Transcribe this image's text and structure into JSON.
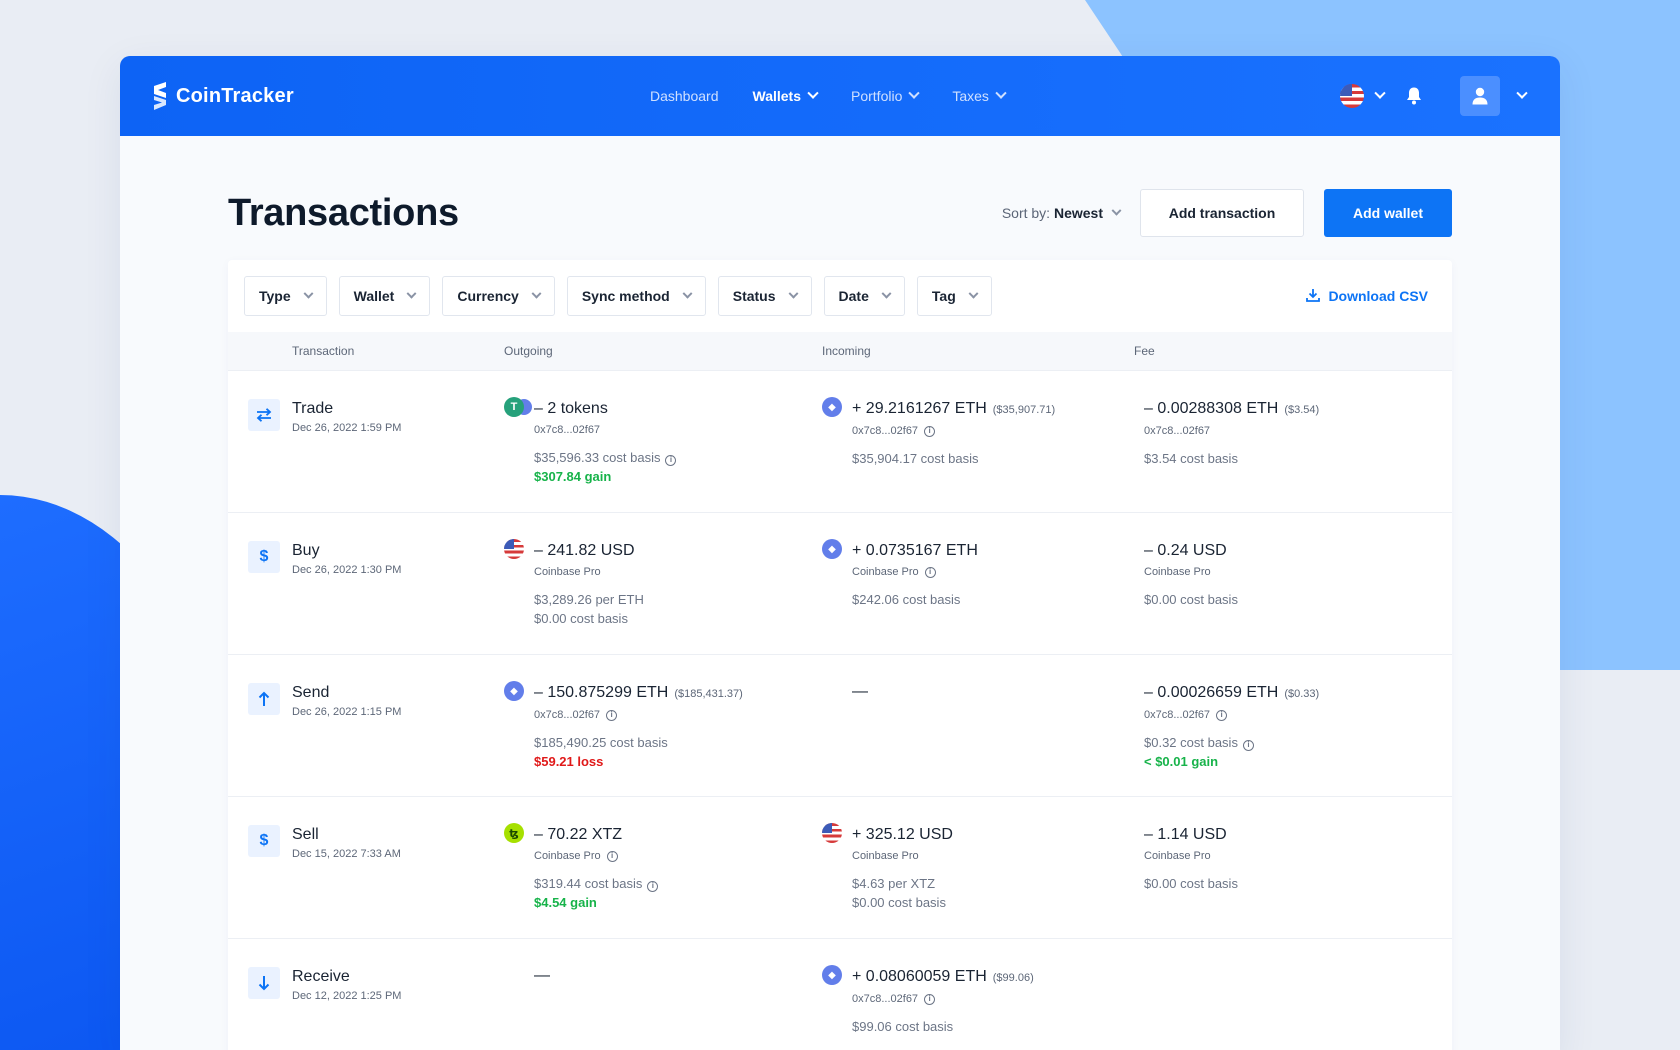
{
  "app": {
    "name": "CoinTracker"
  },
  "nav": [
    {
      "label": "Dashboard",
      "active": false,
      "dropdown": false
    },
    {
      "label": "Wallets",
      "active": true,
      "dropdown": true
    },
    {
      "label": "Portfolio",
      "active": false,
      "dropdown": true
    },
    {
      "label": "Taxes",
      "active": false,
      "dropdown": true
    }
  ],
  "page": {
    "title": "Transactions",
    "sort_prefix": "Sort by:",
    "sort_value": "Newest",
    "add_transaction": "Add transaction",
    "add_wallet": "Add wallet",
    "download_csv": "Download CSV"
  },
  "filters": [
    "Type",
    "Wallet",
    "Currency",
    "Sync method",
    "Status",
    "Date",
    "Tag"
  ],
  "columns": [
    "Transaction",
    "Outgoing",
    "Incoming",
    "Fee"
  ],
  "colors": {
    "brand": "#0d74f5",
    "gain": "#17b34a",
    "loss": "#e01919"
  },
  "rows": [
    {
      "type": "Trade",
      "icon": "swap-icon",
      "date": "Dec 26, 2022 1:59 PM",
      "out": {
        "coin": "usdt-eth",
        "amount": "– 2 tokens",
        "usd": "",
        "sub": "0x7c8...02f67",
        "info": false,
        "meta": [
          "$35,596.33 cost basis"
        ],
        "meta_info": true,
        "result": "$307.84 gain",
        "result_type": "gain"
      },
      "in": {
        "coin": "eth",
        "amount": "+ 29.2161267 ETH",
        "usd": "($35,907.71)",
        "sub": "0x7c8...02f67",
        "info": true,
        "meta": [
          "$35,904.17 cost basis"
        ]
      },
      "fee": {
        "amount": "– 0.00288308 ETH",
        "usd": "($3.54)",
        "sub": "0x7c8...02f67",
        "info": false,
        "meta": [
          "$3.54 cost basis"
        ]
      }
    },
    {
      "type": "Buy",
      "icon": "dollar-icon",
      "date": "Dec 26, 2022 1:30 PM",
      "out": {
        "coin": "usd",
        "amount": "– 241.82 USD",
        "usd": "",
        "sub": "Coinbase Pro",
        "info": false,
        "meta": [
          "$3,289.26 per ETH",
          "$0.00 cost basis"
        ]
      },
      "in": {
        "coin": "eth",
        "amount": "+ 0.0735167 ETH",
        "usd": "",
        "sub": "Coinbase Pro",
        "info": true,
        "meta": [
          "$242.06 cost basis"
        ]
      },
      "fee": {
        "amount": "– 0.24 USD",
        "usd": "",
        "sub": "Coinbase Pro",
        "info": false,
        "meta": [
          "$0.00 cost basis"
        ]
      }
    },
    {
      "type": "Send",
      "icon": "arrow-up-icon",
      "date": "Dec 26, 2022 1:15 PM",
      "out": {
        "coin": "eth",
        "amount": "– 150.875299 ETH",
        "usd": "($185,431.37)",
        "sub": "0x7c8...02f67",
        "info": true,
        "meta": [
          "$185,490.25 cost basis"
        ],
        "result": "$59.21 loss",
        "result_type": "loss"
      },
      "in": {
        "dash": "—"
      },
      "fee": {
        "amount": "– 0.00026659 ETH",
        "usd": "($0.33)",
        "sub": "0x7c8...02f67",
        "info": true,
        "meta": [
          "$0.32 cost basis"
        ],
        "meta_info": true,
        "result": "< $0.01 gain",
        "result_type": "gain"
      }
    },
    {
      "type": "Sell",
      "icon": "dollar-icon",
      "date": "Dec 15, 2022 7:33 AM",
      "out": {
        "coin": "xtz",
        "amount": "– 70.22 XTZ",
        "usd": "",
        "sub": "Coinbase Pro",
        "info": true,
        "meta": [
          "$319.44 cost basis"
        ],
        "meta_info": true,
        "result": "$4.54 gain",
        "result_type": "gain"
      },
      "in": {
        "coin": "usd",
        "amount": "+ 325.12 USD",
        "usd": "",
        "sub": "Coinbase Pro",
        "info": false,
        "meta": [
          "$4.63 per XTZ",
          "$0.00 cost basis"
        ]
      },
      "fee": {
        "amount": "– 1.14 USD",
        "usd": "",
        "sub": "Coinbase Pro",
        "info": false,
        "meta": [
          "$0.00 cost basis"
        ]
      }
    },
    {
      "type": "Receive",
      "icon": "arrow-down-icon",
      "date": "Dec 12, 2022 1:25 PM",
      "out": {
        "dash": "—"
      },
      "in": {
        "coin": "eth",
        "amount": "+ 0.08060059 ETH",
        "usd": "($99.06)",
        "sub": "0x7c8...02f67",
        "info": true,
        "meta": [
          "$99.06 cost basis"
        ]
      },
      "fee": {
        "empty": true
      }
    }
  ]
}
